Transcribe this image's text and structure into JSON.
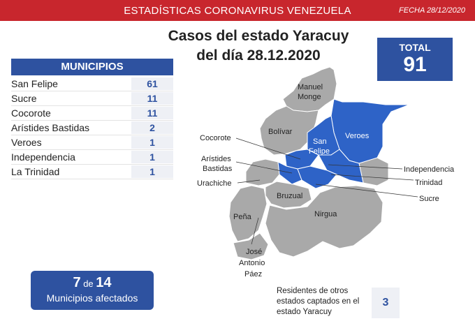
{
  "header": {
    "title": "ESTADÍSTICAS CORONAVIRUS VENEZUELA",
    "date": "FECHA 28/12/2020"
  },
  "headline": {
    "line1": "Casos del estado Yaracuy",
    "line2": "del día 28.12.2020"
  },
  "total": {
    "label": "TOTAL",
    "value": "91"
  },
  "municipios": {
    "header": "MUNICIPIOS",
    "rows": [
      {
        "name": "San Felipe",
        "count": "61"
      },
      {
        "name": "Sucre",
        "count": "11"
      },
      {
        "name": "Cocorote",
        "count": "11"
      },
      {
        "name": "Arístides Bastidas",
        "count": "2"
      },
      {
        "name": "Veroes",
        "count": "1"
      },
      {
        "name": "Independencia",
        "count": "1"
      },
      {
        "name": "La Trinidad",
        "count": "1"
      }
    ]
  },
  "affected": {
    "count": "7",
    "of": "de",
    "total": "14",
    "label": "Municipios afectados"
  },
  "residents": {
    "text": "Residentes de otros estados captados en el estado Yaracuy",
    "value": "3"
  },
  "map": {
    "affected_color": "#2e63c7",
    "unaffected_color": "#a9a9a9",
    "labels": {
      "manuel_monge_1": "Manuel",
      "manuel_monge_2": "Monge",
      "bolivar": "Bolívar",
      "veroes": "Veroes",
      "san_felipe_1": "San",
      "san_felipe_2": "Felipe",
      "cocorote": "Cocorote",
      "aristides_1": "Arístides",
      "aristides_2": "Bastidas",
      "urachiche": "Urachiche",
      "bruzual": "Bruzual",
      "pena": "Peña",
      "nirgua": "Nirgua",
      "jose_antonio_paez_1": "José",
      "jose_antonio_paez_2": "Antonio",
      "jose_antonio_paez_3": "Páez",
      "independencia": "Independencia",
      "trinidad": "Trinidad",
      "sucre": "Sucre"
    }
  }
}
